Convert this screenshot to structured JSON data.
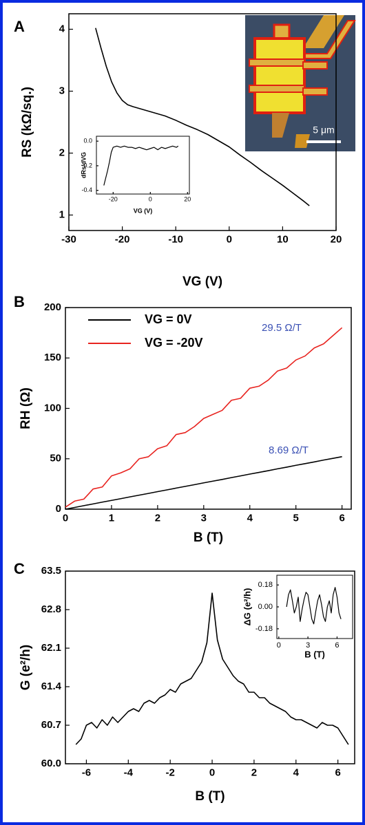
{
  "chart_data": [
    {
      "type": "line",
      "label": "A",
      "xlabel": "VG (V)",
      "ylabel": "RS (kΩ/sq.)",
      "image_label": "5 μm",
      "x": [
        -25,
        -24,
        -23,
        -22,
        -21,
        -20,
        -19,
        -18,
        -16,
        -14,
        -12,
        -10,
        -8,
        -6,
        -4,
        -2,
        0,
        2,
        4,
        6,
        8,
        10,
        12,
        14,
        15
      ],
      "series": [
        {
          "color": "#000000",
          "values": [
            4.02,
            3.7,
            3.4,
            3.15,
            2.97,
            2.85,
            2.78,
            2.75,
            2.7,
            2.65,
            2.6,
            2.53,
            2.45,
            2.38,
            2.3,
            2.2,
            2.1,
            1.97,
            1.85,
            1.72,
            1.6,
            1.48,
            1.35,
            1.22,
            1.15
          ]
        }
      ],
      "xlim": [
        -30,
        20
      ],
      "xticks": [
        -30,
        -20,
        -10,
        0,
        10,
        20
      ],
      "ylim": [
        0.75,
        4.25
      ],
      "yticks": [
        1,
        2,
        3,
        4
      ]
    },
    {
      "type": "line",
      "xlabel": "VG (V)",
      "ylabel": "dRs/dVG",
      "x": [
        -25,
        -24,
        -23,
        -22,
        -21,
        -20,
        -18,
        -16,
        -14,
        -12,
        -10,
        -8,
        -6,
        -4,
        -2,
        0,
        2,
        4,
        6,
        8,
        10,
        12,
        14,
        15
      ],
      "series": [
        {
          "color": "#000000",
          "values": [
            -0.36,
            -0.3,
            -0.24,
            -0.17,
            -0.09,
            -0.05,
            -0.04,
            -0.05,
            -0.04,
            -0.05,
            -0.05,
            -0.06,
            -0.05,
            -0.06,
            -0.07,
            -0.06,
            -0.05,
            -0.07,
            -0.05,
            -0.06,
            -0.05,
            -0.04,
            -0.05,
            -0.04
          ]
        }
      ],
      "xlim": [
        -29,
        21
      ],
      "xticks": [
        -20,
        0,
        20
      ],
      "ylim": [
        -0.43,
        0.04
      ],
      "yticks": [
        {
          "value": 0,
          "label": "0.0"
        },
        -0.2,
        -0.4
      ]
    },
    {
      "type": "line",
      "label": "B",
      "xlabel": "B (T)",
      "ylabel": "RH (Ω)",
      "x": [
        0,
        0.2,
        0.4,
        0.6,
        0.8,
        1,
        1.2,
        1.4,
        1.6,
        1.8,
        2,
        2.2,
        2.4,
        2.6,
        2.8,
        3,
        3.2,
        3.4,
        3.6,
        3.8,
        4,
        4.2,
        4.4,
        4.6,
        4.8,
        5,
        5.2,
        5.4,
        5.6,
        5.8,
        6
      ],
      "series": [
        {
          "name": "VG = 0V",
          "color": "#000000",
          "values": [
            0,
            1.7,
            3.5,
            5.2,
            7.0,
            8.7,
            10.4,
            12.2,
            13.9,
            15.6,
            17.4,
            19.1,
            20.9,
            22.6,
            24.3,
            26.1,
            27.8,
            29.5,
            31.3,
            33.0,
            34.8,
            36.5,
            38.2,
            40.0,
            41.7,
            43.5,
            45.2,
            46.9,
            48.7,
            50.4,
            52.1
          ]
        },
        {
          "name": "VG = -20V",
          "color": "#e8231f",
          "values": [
            2,
            8,
            10,
            20,
            22,
            33,
            36,
            40,
            50,
            52,
            60,
            63,
            74,
            76,
            82,
            90,
            94,
            98,
            108,
            110,
            120,
            122,
            128,
            137,
            140,
            148,
            152,
            160,
            164,
            172,
            180
          ]
        }
      ],
      "annotations": [
        {
          "text": "29.5 Ω/T",
          "color": "#3a50b4"
        },
        {
          "text": "8.69 Ω/T",
          "color": "#3a50b4"
        }
      ],
      "xlim": [
        0,
        6.2
      ],
      "xticks": [
        0,
        1,
        2,
        3,
        4,
        5,
        6
      ],
      "ylim": [
        0,
        200
      ],
      "yticks": [
        0,
        50,
        100,
        150,
        200
      ]
    },
    {
      "type": "line",
      "label": "C",
      "xlabel": "B (T)",
      "ylabel": "G (e²/h)",
      "x": [
        -6.5,
        -6.25,
        -6,
        -5.75,
        -5.5,
        -5.25,
        -5,
        -4.75,
        -4.5,
        -4.25,
        -4,
        -3.75,
        -3.5,
        -3.25,
        -3,
        -2.75,
        -2.5,
        -2.25,
        -2,
        -1.75,
        -1.5,
        -1.25,
        -1,
        -0.75,
        -0.5,
        -0.25,
        0,
        0.25,
        0.5,
        0.75,
        1,
        1.25,
        1.5,
        1.75,
        2,
        2.25,
        2.5,
        2.75,
        3,
        3.25,
        3.5,
        3.75,
        4,
        4.25,
        4.5,
        4.75,
        5,
        5.25,
        5.5,
        5.75,
        6,
        6.25,
        6.5
      ],
      "series": [
        {
          "color": "#000000",
          "values": [
            60.35,
            60.45,
            60.7,
            60.75,
            60.65,
            60.8,
            60.7,
            60.85,
            60.75,
            60.85,
            60.95,
            61.0,
            60.95,
            61.1,
            61.15,
            61.1,
            61.2,
            61.25,
            61.35,
            61.3,
            61.45,
            61.5,
            61.55,
            61.7,
            61.85,
            62.2,
            63.1,
            62.25,
            61.9,
            61.75,
            61.6,
            61.5,
            61.45,
            61.3,
            61.3,
            61.2,
            61.2,
            61.1,
            61.05,
            61.0,
            60.95,
            60.85,
            60.8,
            60.8,
            60.75,
            60.7,
            60.65,
            60.75,
            60.7,
            60.7,
            60.65,
            60.5,
            60.35
          ]
        }
      ],
      "xlim": [
        -7,
        6.8
      ],
      "xticks": [
        -6,
        -4,
        -2,
        0,
        2,
        4,
        6
      ],
      "ylim": [
        60,
        63.5
      ],
      "yticks": [
        {
          "value": 60,
          "label": "60.0"
        },
        60.7,
        61.4,
        62.1,
        62.8,
        63.5
      ]
    },
    {
      "type": "line",
      "xlabel": "B (T)",
      "ylabel": "ΔG (e²/h)",
      "x": [
        0.8,
        1,
        1.2,
        1.4,
        1.6,
        1.8,
        2,
        2.2,
        2.4,
        2.6,
        2.8,
        3,
        3.2,
        3.4,
        3.6,
        3.8,
        4,
        4.2,
        4.4,
        4.6,
        4.8,
        5,
        5.2,
        5.4,
        5.6,
        5.8,
        6,
        6.2,
        6.4
      ],
      "series": [
        {
          "color": "#000000",
          "values": [
            0.0,
            0.1,
            0.14,
            0.05,
            -0.05,
            0.0,
            0.08,
            -0.12,
            -0.02,
            0.06,
            0.12,
            0.1,
            0.0,
            -0.1,
            -0.14,
            -0.04,
            0.05,
            0.1,
            0.02,
            -0.08,
            -0.12,
            0.0,
            0.05,
            -0.05,
            0.1,
            0.16,
            0.08,
            -0.05,
            -0.1
          ]
        }
      ],
      "xlim": [
        -0.2,
        7.6
      ],
      "xticks": [
        0,
        3,
        6
      ],
      "ylim": [
        -0.26,
        0.26
      ],
      "yticks": [
        0.18,
        {
          "value": 0,
          "label": "0.00"
        },
        -0.18
      ]
    }
  ]
}
